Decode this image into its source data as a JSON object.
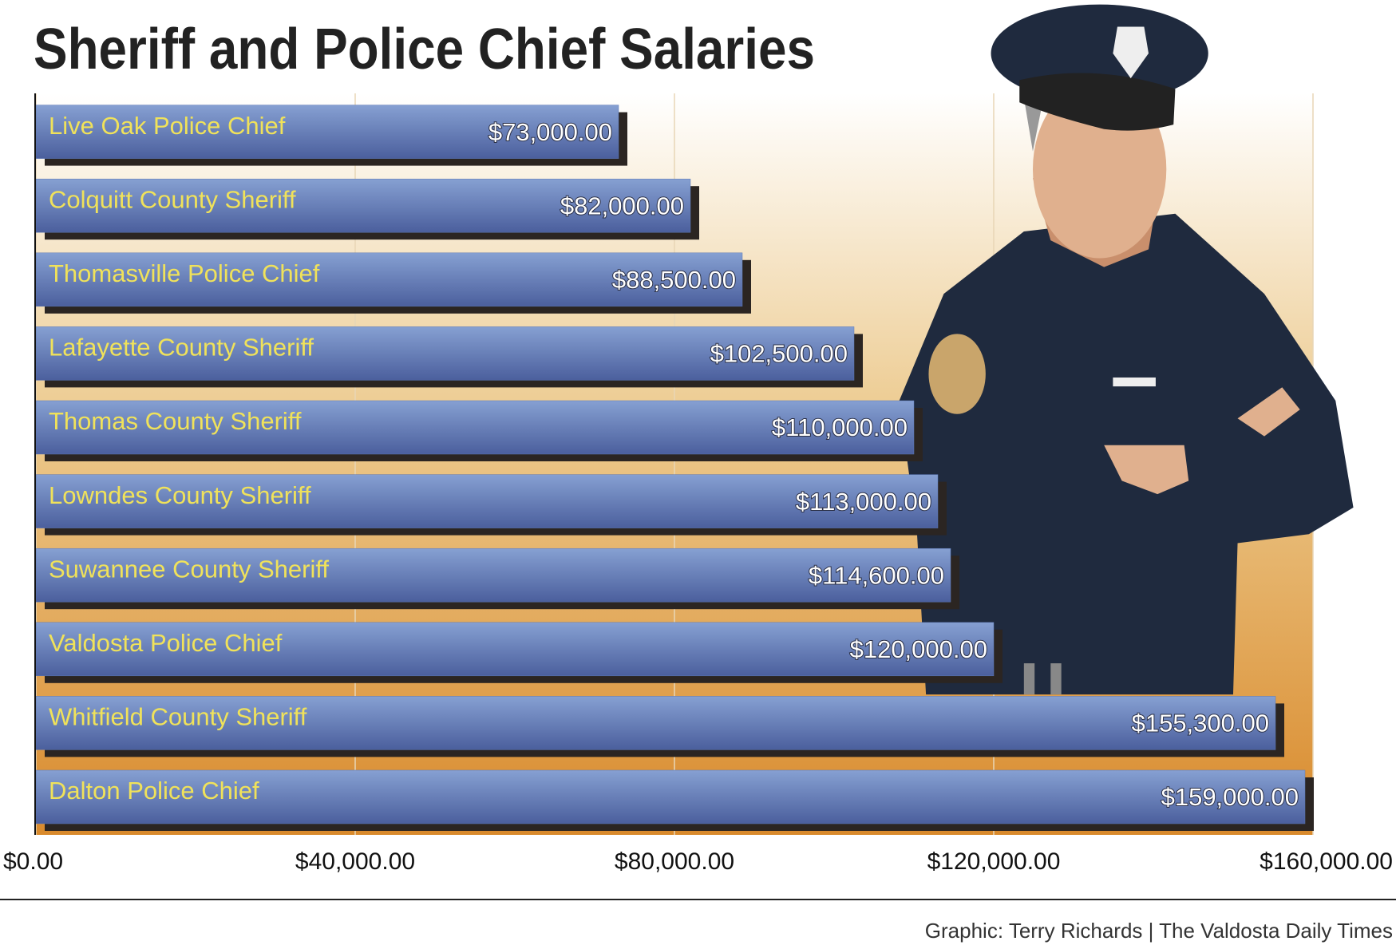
{
  "chart_data": {
    "type": "bar",
    "orientation": "horizontal",
    "title": "Sheriff and Police Chief Salaries",
    "categories": [
      "Live Oak Police Chief",
      "Colquitt County Sheriff",
      "Thomasville Police Chief",
      "Lafayette County Sheriff",
      "Thomas County Sheriff",
      "Lowndes County Sheriff",
      "Suwannee County Sheriff",
      "Valdosta Police Chief",
      "Whitfield County Sheriff",
      "Dalton Police Chief"
    ],
    "values": [
      73000,
      82000,
      88500,
      102500,
      110000,
      113000,
      114600,
      120000,
      155300,
      159000
    ],
    "value_labels": [
      "$73,000.00",
      "$82,000.00",
      "$88,500.00",
      "$102,500.00",
      "$110,000.00",
      "$113,000.00",
      "$114,600.00",
      "$120,000.00",
      "$155,300.00",
      "$159,000.00"
    ],
    "color": "#5d78b5",
    "xlim": [
      0,
      160000
    ],
    "xticks": [
      {
        "value": 0,
        "label": "$0.00"
      },
      {
        "value": 40000,
        "label": "$40,000.00"
      },
      {
        "value": 80000,
        "label": "$80,000.00"
      },
      {
        "value": 120000,
        "label": "$120,000.00"
      },
      {
        "value": 160000,
        "label": "$160,000.00"
      }
    ],
    "grid": true,
    "credit": "Graphic: Terry Richards | The Valdosta Daily Times"
  }
}
